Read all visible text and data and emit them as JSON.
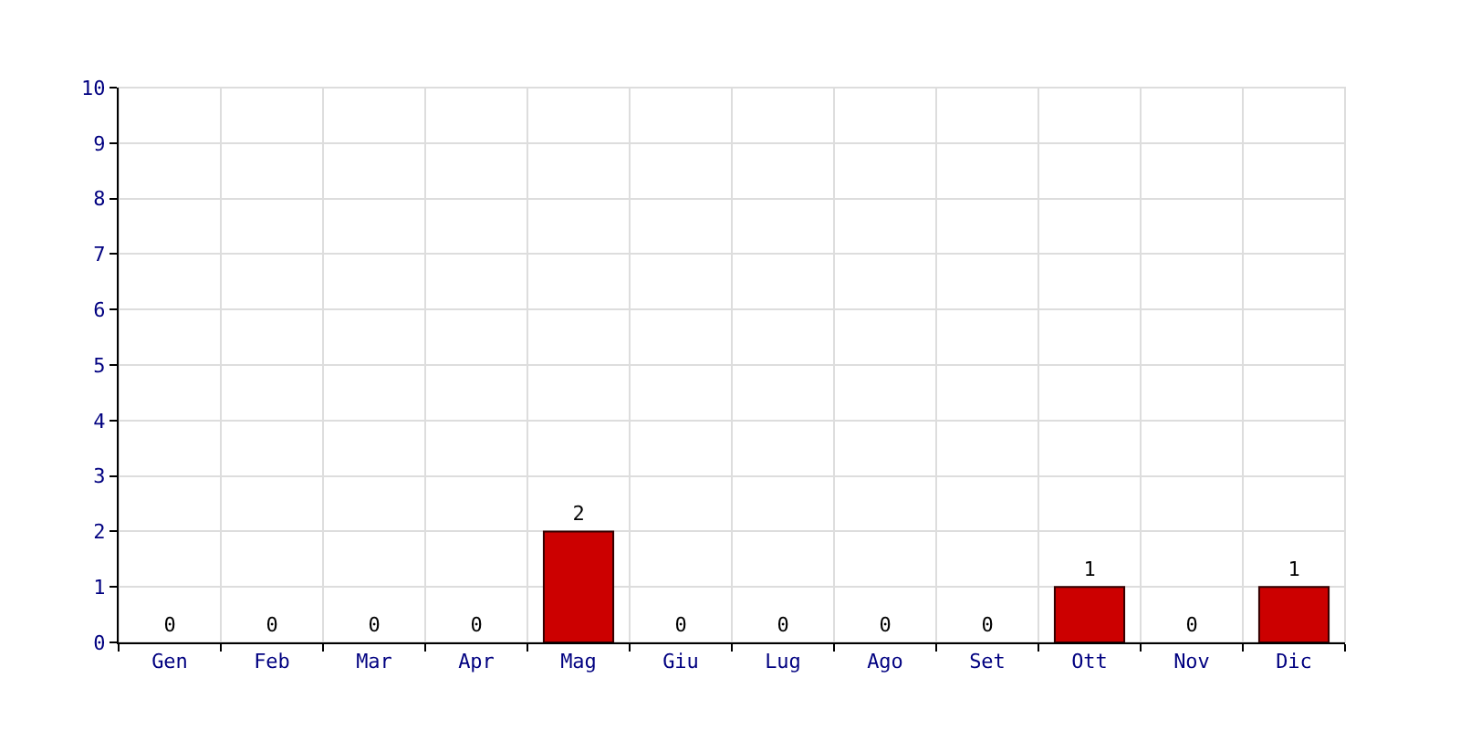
{
  "chart_data": {
    "type": "bar",
    "categories": [
      "Gen",
      "Feb",
      "Mar",
      "Apr",
      "Mag",
      "Giu",
      "Lug",
      "Ago",
      "Set",
      "Ott",
      "Nov",
      "Dic"
    ],
    "values": [
      0,
      0,
      0,
      0,
      2,
      0,
      0,
      0,
      0,
      1,
      0,
      1
    ],
    "color": "#cc0000",
    "ylim": [
      0,
      10
    ],
    "yticks": [
      0,
      1,
      2,
      3,
      4,
      5,
      6,
      7,
      8,
      9,
      10
    ],
    "grid": true,
    "data_labels": true
  }
}
